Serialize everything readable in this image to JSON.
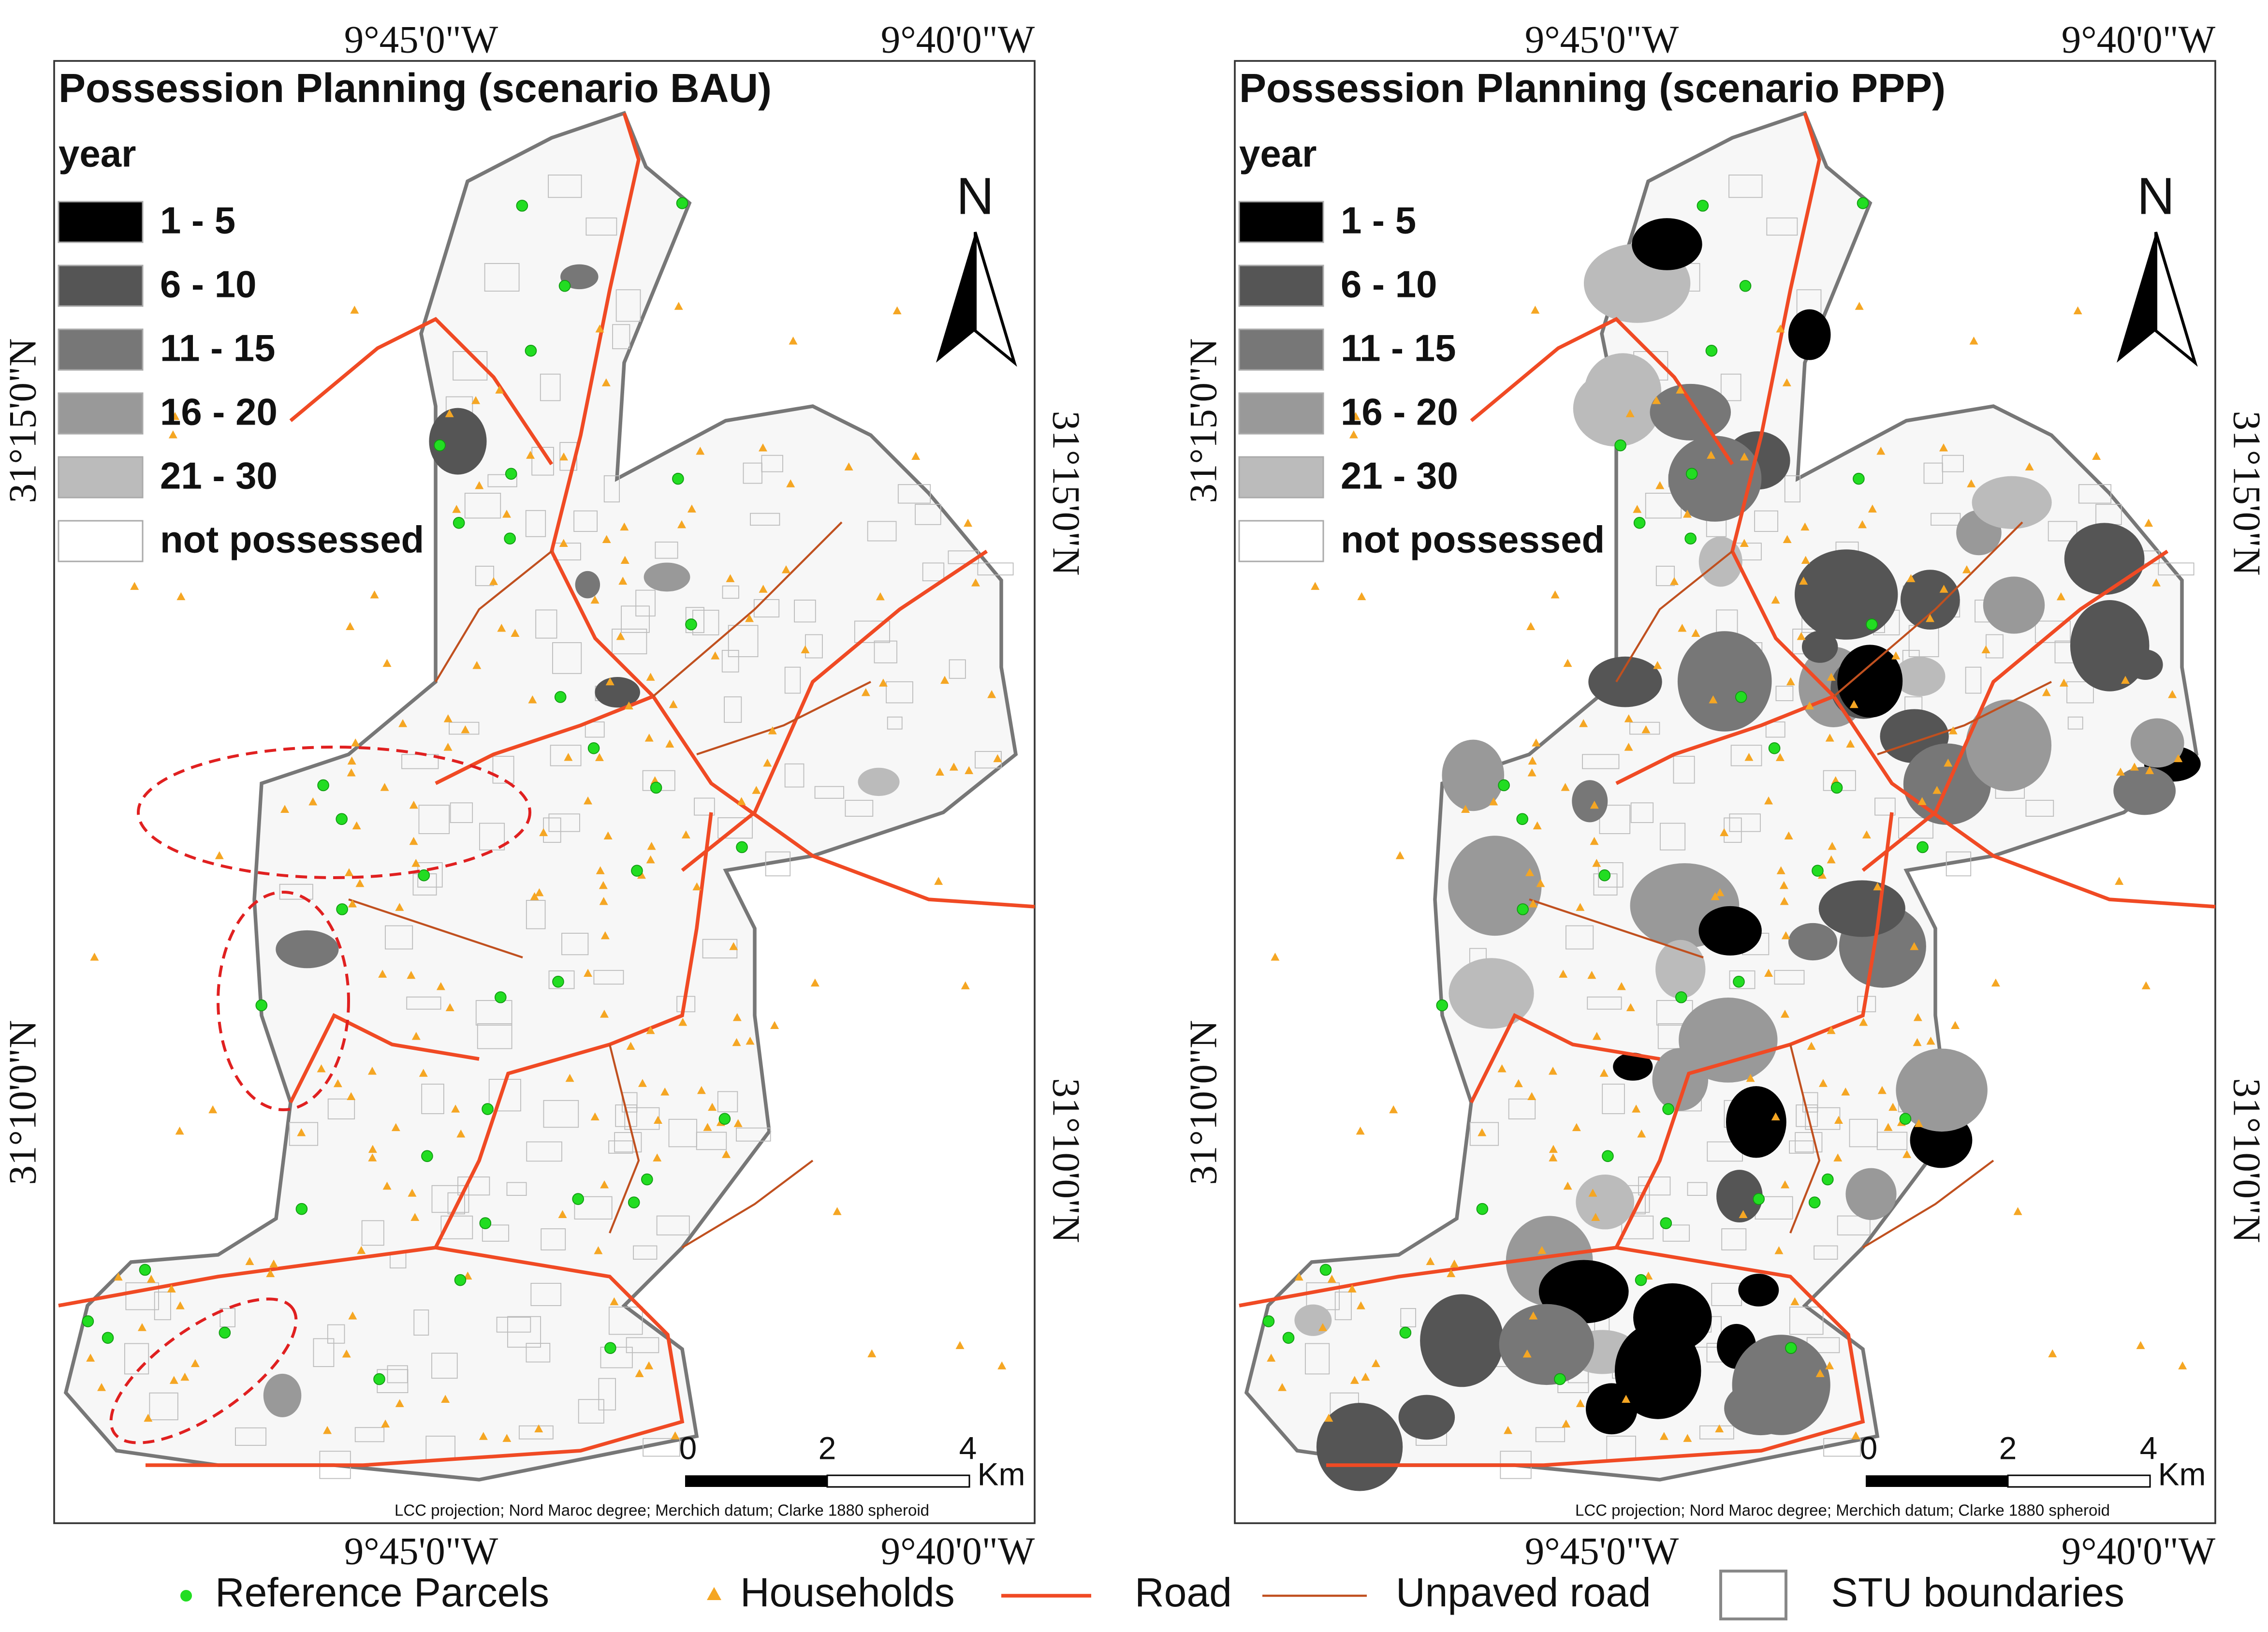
{
  "panels": [
    {
      "title": "Possession Planning (scenario BAU)",
      "legend_title": "year",
      "legend_items": [
        "1 - 5",
        "6 - 10",
        "11 - 15",
        "16 - 20",
        "21 - 30",
        "not possessed"
      ],
      "north": "N",
      "top_labels": [
        "9°45'0\"W",
        "9°40'0\"W"
      ],
      "bottom_labels": [
        "9°45'0\"W",
        "9°40'0\"W"
      ],
      "left_labels": [
        "31°15'0\"N",
        "31°10'0\"N"
      ],
      "right_labels": [
        "31°15'0\"N",
        "31°10'0\"N"
      ],
      "scale_labels": [
        "0",
        "2",
        "4"
      ],
      "scale_unit": "Km",
      "projection": "LCC projection; Nord Maroc degree; Merchich datum; Clarke 1880 spheroid"
    },
    {
      "title": "Possession Planning (scenario PPP)",
      "legend_title": "year",
      "legend_items": [
        "1 - 5",
        "6 - 10",
        "11 - 15",
        "16 - 20",
        "21 - 30",
        "not possessed"
      ],
      "north": "N",
      "top_labels": [
        "9°45'0\"W",
        "9°40'0\"W"
      ],
      "bottom_labels": [
        "9°45'0\"W",
        "9°40'0\"W"
      ],
      "left_labels": [
        "31°15'0\"N",
        "31°10'0\"N"
      ],
      "right_labels": [
        "31°15'0\"N",
        "31°10'0\"N"
      ],
      "scale_labels": [
        "0",
        "2",
        "4"
      ],
      "scale_unit": "Km",
      "projection": "LCC projection; Nord Maroc degree; Merchich datum; Clarke 1880 spheroid"
    }
  ],
  "legend": [
    "Reference Parcels",
    "Households",
    "Road",
    "Unpaved road",
    "STU boundaries"
  ]
}
